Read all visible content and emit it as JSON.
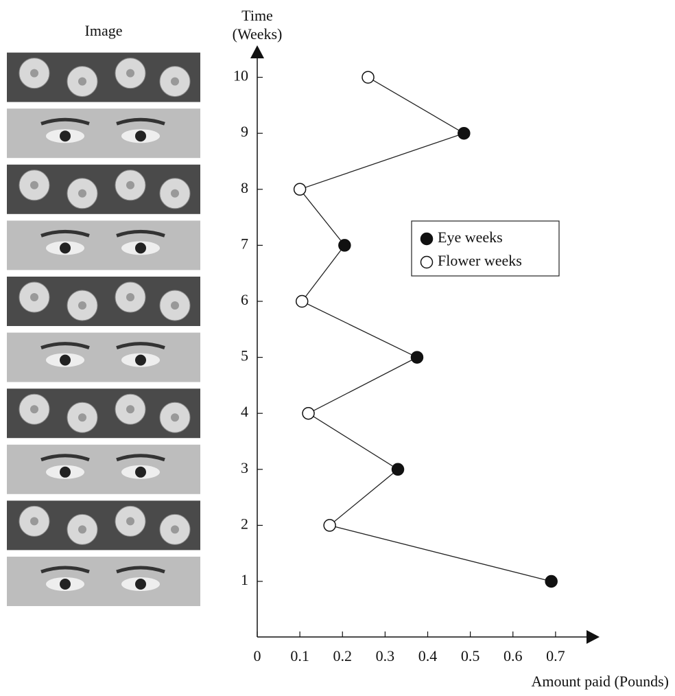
{
  "chart_data": {
    "type": "line",
    "image_column_title": "Image",
    "y_label_lines": [
      "Time",
      "(Weeks)"
    ],
    "x_label": "Amount paid (Pounds)",
    "weeks": [
      1,
      2,
      3,
      4,
      5,
      6,
      7,
      8,
      9,
      10
    ],
    "values": [
      0.69,
      0.17,
      0.33,
      0.12,
      0.375,
      0.105,
      0.205,
      0.1,
      0.485,
      0.26
    ],
    "marker_fills": [
      "#111111",
      "#ffffff",
      "#111111",
      "#ffffff",
      "#111111",
      "#ffffff",
      "#111111",
      "#ffffff",
      "#111111",
      "#ffffff"
    ],
    "line_color": "#222222",
    "legend": [
      {
        "name": "Eye weeks",
        "fill": "#111111"
      },
      {
        "name": "Flower weeks",
        "fill": "#ffffff"
      }
    ],
    "xlim": [
      0,
      0.8
    ],
    "xticks": [
      0,
      0.1,
      0.2,
      0.3,
      0.4,
      0.5,
      0.6,
      0.7
    ],
    "ylim": [
      0,
      10.5
    ],
    "yticks": [
      1,
      2,
      3,
      4,
      5,
      6,
      7,
      8,
      9,
      10
    ]
  }
}
